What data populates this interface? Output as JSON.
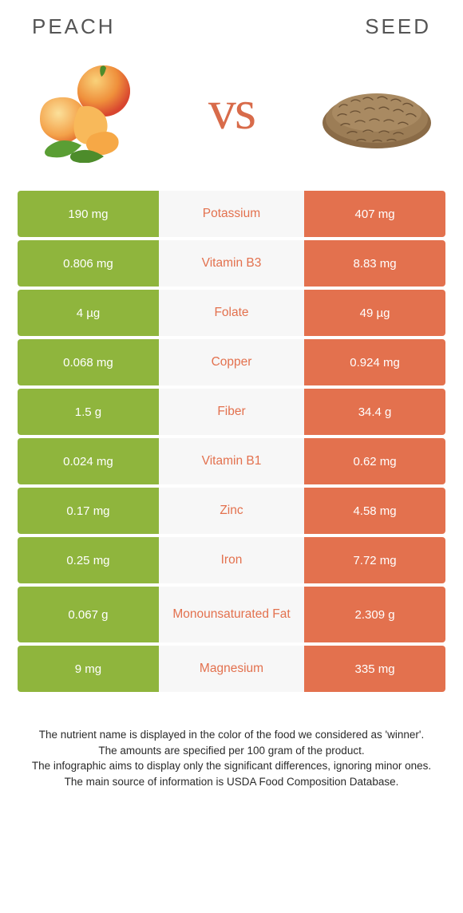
{
  "colors": {
    "peach": "#8fb53d",
    "seed": "#e3714e",
    "mid_text_winner_peach": "#8fb53d",
    "mid_text_winner_seed": "#e3714e",
    "mid_bg": "#f7f7f7",
    "bg": "#ffffff",
    "header_text": "#555555",
    "vs_text": "#d86b4a",
    "footer_text": "#2a2a2a"
  },
  "header": {
    "left": "Peach",
    "right": "Seed",
    "vs": "vs"
  },
  "rows": [
    {
      "left": "190 mg",
      "label": "Potassium",
      "right": "407 mg",
      "winner": "seed",
      "tall": false
    },
    {
      "left": "0.806 mg",
      "label": "Vitamin B3",
      "right": "8.83 mg",
      "winner": "seed",
      "tall": false
    },
    {
      "left": "4 µg",
      "label": "Folate",
      "right": "49 µg",
      "winner": "seed",
      "tall": false
    },
    {
      "left": "0.068 mg",
      "label": "Copper",
      "right": "0.924 mg",
      "winner": "seed",
      "tall": false
    },
    {
      "left": "1.5 g",
      "label": "Fiber",
      "right": "34.4 g",
      "winner": "seed",
      "tall": false
    },
    {
      "left": "0.024 mg",
      "label": "Vitamin B1",
      "right": "0.62 mg",
      "winner": "seed",
      "tall": false
    },
    {
      "left": "0.17 mg",
      "label": "Zinc",
      "right": "4.58 mg",
      "winner": "seed",
      "tall": false
    },
    {
      "left": "0.25 mg",
      "label": "Iron",
      "right": "7.72 mg",
      "winner": "seed",
      "tall": false
    },
    {
      "left": "0.067 g",
      "label": "Monounsaturated Fat",
      "right": "2.309 g",
      "winner": "seed",
      "tall": true
    },
    {
      "left": "9 mg",
      "label": "Magnesium",
      "right": "335 mg",
      "winner": "seed",
      "tall": false
    }
  ],
  "footer": [
    "The nutrient name is displayed in the color of the food we considered as 'winner'.",
    "The amounts are specified per 100 gram of the product.",
    "The infographic aims to display only the significant differences, ignoring minor ones.",
    "The main source of information is USDA Food Composition Database."
  ]
}
